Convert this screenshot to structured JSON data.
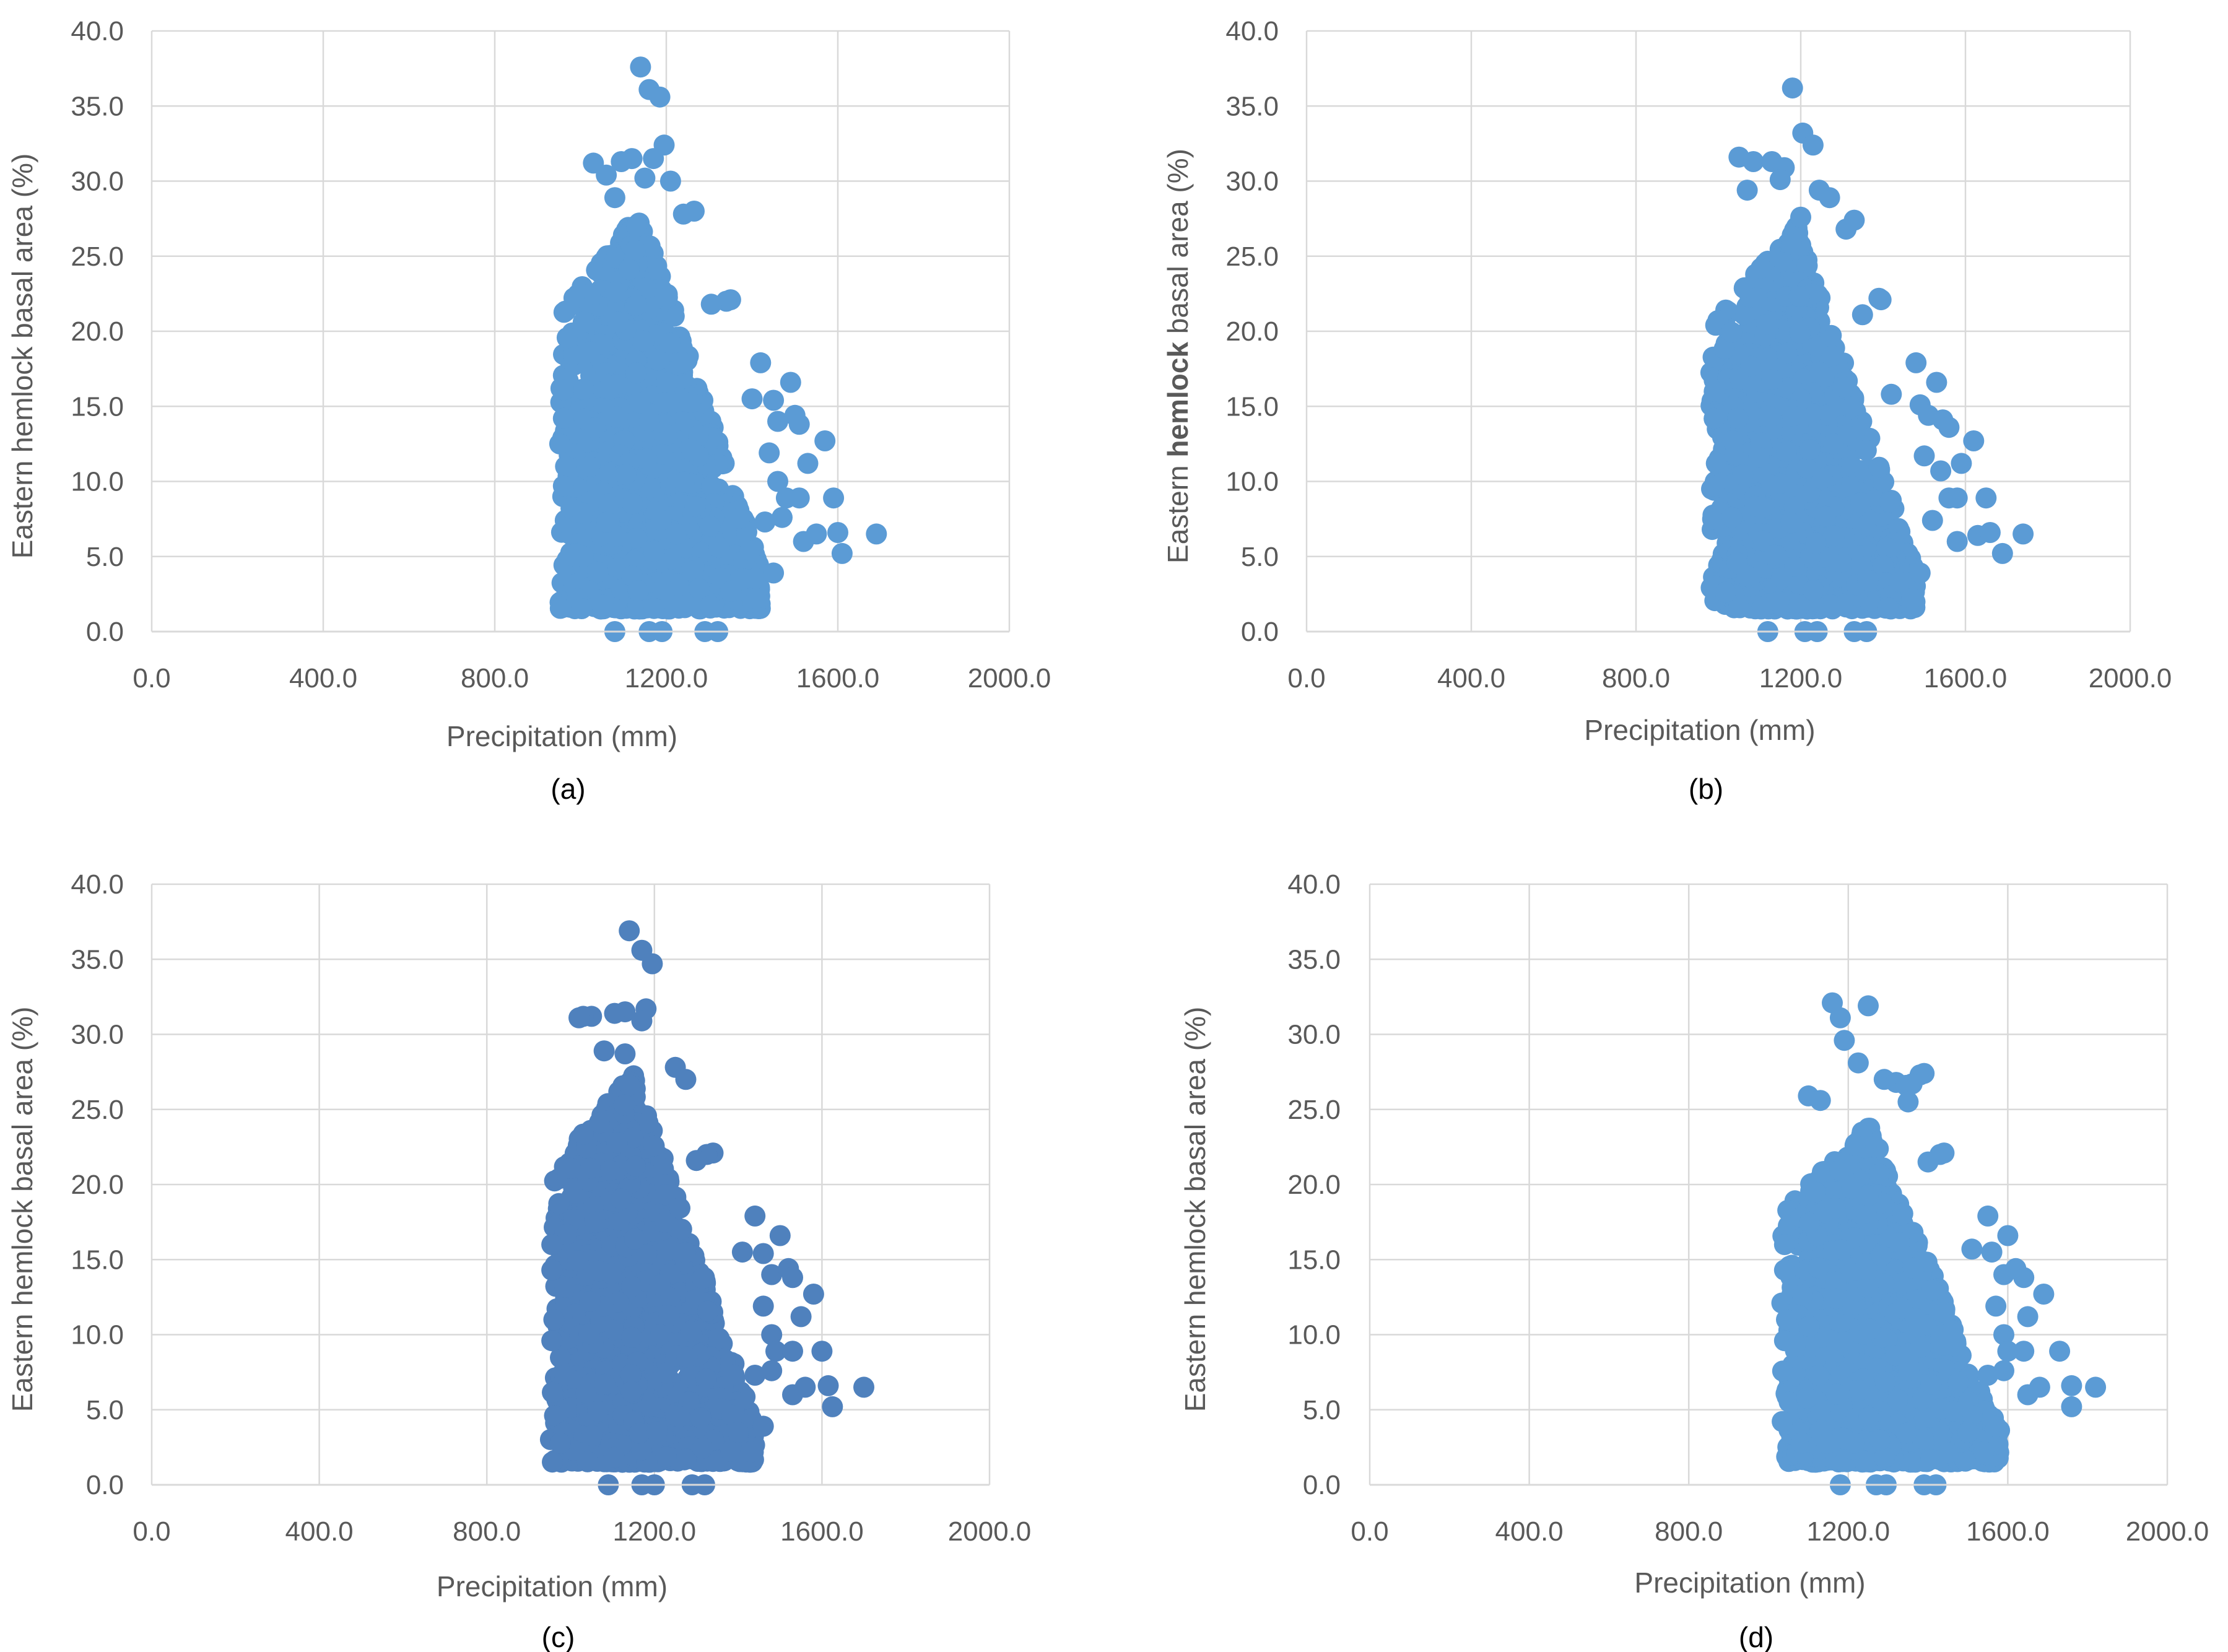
{
  "chart_data": [
    {
      "type": "scatter",
      "panel": "a",
      "caption": "(a)",
      "xlabel": "Precipitation (mm)",
      "ylabel": {
        "before": "Eastern ",
        "bold": "",
        "after": "hemlock basal area (%)"
      },
      "xlim": [
        0,
        2000
      ],
      "ylim": [
        0,
        40
      ],
      "xticks": [
        "0.0",
        "400.0",
        "800.0",
        "1200.0",
        "1600.0",
        "2000.0"
      ],
      "yticks": [
        "0.0",
        "5.0",
        "10.0",
        "15.0",
        "20.0",
        "25.0",
        "30.0",
        "35.0",
        "40.0"
      ],
      "marker_color": "#5b9bd5",
      "grid": true,
      "cloud": {
        "x_min": 950,
        "x_peak": 1140,
        "x_max": 1420,
        "y_max_at_peak": 28,
        "n": 1800,
        "seed": 11
      },
      "outliers": [
        [
          1140,
          37.6
        ],
        [
          1160,
          36.1
        ],
        [
          1185,
          35.6
        ],
        [
          1195,
          32.4
        ],
        [
          1170,
          31.5
        ],
        [
          1120,
          31.5
        ],
        [
          1095,
          31.3
        ],
        [
          1030,
          31.2
        ],
        [
          1060,
          30.4
        ],
        [
          1150,
          30.2
        ],
        [
          1210,
          30.0
        ],
        [
          1080,
          28.9
        ],
        [
          1240,
          27.8
        ],
        [
          1265,
          28.0
        ],
        [
          1350,
          22.1
        ],
        [
          1340,
          22.0
        ],
        [
          1305,
          21.8
        ],
        [
          1420,
          17.9
        ],
        [
          1490,
          16.6
        ],
        [
          1400,
          15.5
        ],
        [
          1450,
          15.4
        ],
        [
          1460,
          14.0
        ],
        [
          1500,
          14.4
        ],
        [
          1510,
          13.8
        ],
        [
          1570,
          12.7
        ],
        [
          1530,
          11.2
        ],
        [
          1440,
          11.9
        ],
        [
          1460,
          10.0
        ],
        [
          1480,
          8.9
        ],
        [
          1510,
          8.9
        ],
        [
          1550,
          6.5
        ],
        [
          1590,
          8.9
        ],
        [
          1600,
          6.6
        ],
        [
          1610,
          5.2
        ],
        [
          1690,
          6.5
        ],
        [
          1520,
          6.0
        ],
        [
          1470,
          7.6
        ],
        [
          1430,
          7.3
        ],
        [
          1450,
          3.9
        ],
        [
          1410,
          2.2
        ],
        [
          1380,
          3.5
        ],
        [
          1080,
          0.0
        ],
        [
          1160,
          0.0
        ],
        [
          1190,
          0.0
        ],
        [
          1290,
          0.0
        ],
        [
          1320,
          0.0
        ],
        [
          960,
          16.1
        ],
        [
          960,
          14.2
        ],
        [
          965,
          11.0
        ],
        [
          960,
          9.7
        ]
      ]
    },
    {
      "type": "scatter",
      "panel": "b",
      "caption": "(b)",
      "xlabel": "Precipitation (mm)",
      "ylabel": {
        "before": "Eastern ",
        "bold": "hemlock",
        "after": " basal area (%)"
      },
      "xlim": [
        0,
        2000
      ],
      "ylim": [
        0,
        40
      ],
      "xticks": [
        "0.0",
        "400.0",
        "800.0",
        "1200.0",
        "1600.0",
        "2000.0"
      ],
      "yticks": [
        "0.0",
        "5.0",
        "10.0",
        "15.0",
        "20.0",
        "25.0",
        "30.0",
        "35.0",
        "40.0"
      ],
      "marker_color": "#5b9bd5",
      "grid": true,
      "cloud": {
        "x_min": 980,
        "x_peak": 1190,
        "x_max": 1480,
        "y_max_at_peak": 27,
        "n": 1800,
        "seed": 23
      },
      "outliers": [
        [
          1180,
          36.2
        ],
        [
          1205,
          33.2
        ],
        [
          1230,
          32.4
        ],
        [
          1050,
          31.6
        ],
        [
          1085,
          31.3
        ],
        [
          1130,
          31.3
        ],
        [
          1160,
          30.9
        ],
        [
          1070,
          29.4
        ],
        [
          1150,
          30.1
        ],
        [
          1245,
          29.4
        ],
        [
          1270,
          28.9
        ],
        [
          1330,
          27.4
        ],
        [
          1310,
          26.8
        ],
        [
          1200,
          27.6
        ],
        [
          1395,
          22.1
        ],
        [
          1390,
          22.2
        ],
        [
          1350,
          21.1
        ],
        [
          1480,
          17.9
        ],
        [
          1530,
          16.6
        ],
        [
          1420,
          15.8
        ],
        [
          1490,
          15.1
        ],
        [
          1510,
          14.4
        ],
        [
          1545,
          14.1
        ],
        [
          1560,
          13.6
        ],
        [
          1620,
          12.7
        ],
        [
          1590,
          11.2
        ],
        [
          1500,
          11.7
        ],
        [
          1540,
          10.7
        ],
        [
          1560,
          8.9
        ],
        [
          1580,
          8.9
        ],
        [
          1650,
          8.9
        ],
        [
          1630,
          6.4
        ],
        [
          1660,
          6.6
        ],
        [
          1690,
          5.2
        ],
        [
          1740,
          6.5
        ],
        [
          1580,
          6.0
        ],
        [
          1520,
          7.4
        ],
        [
          1490,
          3.9
        ],
        [
          1470,
          2.2
        ],
        [
          1440,
          3.3
        ],
        [
          1120,
          0.0
        ],
        [
          1210,
          0.0
        ],
        [
          1240,
          0.0
        ],
        [
          1330,
          0.0
        ],
        [
          1360,
          0.0
        ],
        [
          990,
          16.0
        ],
        [
          990,
          14.2
        ],
        [
          995,
          11.2
        ],
        [
          990,
          9.7
        ]
      ]
    },
    {
      "type": "scatter",
      "panel": "c",
      "caption": "(c)",
      "xlabel": "Precipitation (mm)",
      "ylabel": {
        "before": "Eastern ",
        "bold": "",
        "after": "hemlock basal area (%)"
      },
      "xlim": [
        0,
        2000
      ],
      "ylim": [
        0,
        40
      ],
      "xticks": [
        "0.0",
        "400.0",
        "800.0",
        "1200.0",
        "1600.0",
        "2000.0"
      ],
      "yticks": [
        "0.0",
        "5.0",
        "10.0",
        "15.0",
        "20.0",
        "25.0",
        "30.0",
        "35.0",
        "40.0"
      ],
      "marker_color": "#4f81bd",
      "grid": true,
      "cloud": {
        "x_min": 950,
        "x_peak": 1150,
        "x_max": 1440,
        "y_max_at_peak": 27.5,
        "n": 1800,
        "seed": 37
      },
      "outliers": [
        [
          1140,
          36.9
        ],
        [
          1170,
          35.6
        ],
        [
          1195,
          34.7
        ],
        [
          1180,
          31.7
        ],
        [
          1130,
          31.5
        ],
        [
          1105,
          31.4
        ],
        [
          1050,
          31.2
        ],
        [
          1030,
          31.2
        ],
        [
          1020,
          31.1
        ],
        [
          1170,
          30.9
        ],
        [
          1080,
          28.9
        ],
        [
          1130,
          28.7
        ],
        [
          1250,
          27.8
        ],
        [
          1275,
          27.0
        ],
        [
          1340,
          22.1
        ],
        [
          1325,
          22.0
        ],
        [
          1300,
          21.6
        ],
        [
          1440,
          17.9
        ],
        [
          1500,
          16.6
        ],
        [
          1410,
          15.5
        ],
        [
          1460,
          15.4
        ],
        [
          1480,
          14.0
        ],
        [
          1520,
          14.4
        ],
        [
          1530,
          13.8
        ],
        [
          1580,
          12.7
        ],
        [
          1550,
          11.2
        ],
        [
          1460,
          11.9
        ],
        [
          1480,
          10.0
        ],
        [
          1490,
          8.9
        ],
        [
          1530,
          8.9
        ],
        [
          1560,
          6.5
        ],
        [
          1600,
          8.9
        ],
        [
          1615,
          6.6
        ],
        [
          1625,
          5.2
        ],
        [
          1700,
          6.5
        ],
        [
          1530,
          6.0
        ],
        [
          1480,
          7.6
        ],
        [
          1440,
          7.3
        ],
        [
          1460,
          3.9
        ],
        [
          1430,
          2.2
        ],
        [
          1400,
          3.5
        ],
        [
          1090,
          0.0
        ],
        [
          1170,
          0.0
        ],
        [
          1200,
          0.0
        ],
        [
          1290,
          0.0
        ],
        [
          1320,
          0.0
        ],
        [
          955,
          16.0
        ],
        [
          955,
          14.3
        ],
        [
          960,
          11.0
        ],
        [
          955,
          9.6
        ]
      ]
    },
    {
      "type": "scatter",
      "panel": "d",
      "caption": "(d)",
      "xlabel": "Precipitation (mm)",
      "ylabel": {
        "before": "Eastern ",
        "bold": "",
        "after": "hemlock basal area (%)"
      },
      "xlim": [
        0,
        2000
      ],
      "ylim": [
        0,
        40
      ],
      "xticks": [
        "0.0",
        "400.0",
        "800.0",
        "1200.0",
        "1600.0",
        "2000.0"
      ],
      "yticks": [
        "0.0",
        "5.0",
        "10.0",
        "15.0",
        "20.0",
        "25.0",
        "30.0",
        "35.0",
        "40.0"
      ],
      "marker_color": "#5b9bd5",
      "grid": true,
      "cloud": {
        "x_min": 1030,
        "x_peak": 1250,
        "x_max": 1580,
        "y_max_at_peak": 24,
        "n": 1800,
        "seed": 53
      },
      "outliers": [
        [
          1160,
          32.1
        ],
        [
          1250,
          31.9
        ],
        [
          1180,
          31.1
        ],
        [
          1190,
          29.6
        ],
        [
          1225,
          28.1
        ],
        [
          1290,
          27.0
        ],
        [
          1320,
          26.8
        ],
        [
          1345,
          26.6
        ],
        [
          1390,
          27.4
        ],
        [
          1380,
          27.3
        ],
        [
          1360,
          26.7
        ],
        [
          1350,
          25.5
        ],
        [
          1100,
          25.9
        ],
        [
          1130,
          25.6
        ],
        [
          1440,
          22.1
        ],
        [
          1430,
          22.0
        ],
        [
          1400,
          21.5
        ],
        [
          1550,
          17.9
        ],
        [
          1600,
          16.6
        ],
        [
          1510,
          15.7
        ],
        [
          1560,
          15.5
        ],
        [
          1590,
          14.0
        ],
        [
          1620,
          14.4
        ],
        [
          1640,
          13.8
        ],
        [
          1690,
          12.7
        ],
        [
          1650,
          11.2
        ],
        [
          1570,
          11.9
        ],
        [
          1590,
          10.0
        ],
        [
          1600,
          8.9
        ],
        [
          1640,
          8.9
        ],
        [
          1680,
          6.5
        ],
        [
          1730,
          8.9
        ],
        [
          1760,
          6.6
        ],
        [
          1760,
          5.2
        ],
        [
          1820,
          6.5
        ],
        [
          1650,
          6.0
        ],
        [
          1590,
          7.6
        ],
        [
          1550,
          7.3
        ],
        [
          1570,
          3.9
        ],
        [
          1540,
          2.2
        ],
        [
          1500,
          3.5
        ],
        [
          1180,
          0.0
        ],
        [
          1270,
          0.0
        ],
        [
          1295,
          0.0
        ],
        [
          1390,
          0.0
        ],
        [
          1420,
          0.0
        ],
        [
          1040,
          16.0
        ],
        [
          1040,
          14.3
        ],
        [
          1045,
          11.0
        ],
        [
          1040,
          9.6
        ]
      ]
    }
  ]
}
